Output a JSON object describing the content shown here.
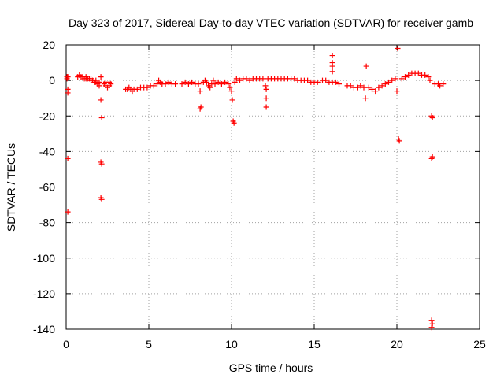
{
  "chart_data": {
    "type": "scatter",
    "title": "Day 323 of 2017, Sidereal Day-to-day VTEC variation (SDTVAR) for receiver gamb",
    "xlabel": "GPS time / hours",
    "ylabel": "SDTVAR / TECUs",
    "xlim": [
      0,
      25
    ],
    "ylim": [
      -140,
      20
    ],
    "xticks": [
      0,
      5,
      10,
      15,
      20,
      25
    ],
    "yticks": [
      20,
      0,
      -20,
      -40,
      -60,
      -80,
      -100,
      -120,
      -140
    ],
    "grid": true,
    "marker": "plus",
    "color": "#ff0000",
    "series": [
      {
        "name": "SDTVAR",
        "points": [
          [
            0.05,
            2
          ],
          [
            0.05,
            1
          ],
          [
            0.1,
            2
          ],
          [
            0.1,
            -5
          ],
          [
            0.1,
            -7
          ],
          [
            0.1,
            -44
          ],
          [
            0.1,
            -74
          ],
          [
            0.7,
            2
          ],
          [
            0.8,
            3
          ],
          [
            0.9,
            2
          ],
          [
            1.0,
            2
          ],
          [
            1.1,
            1
          ],
          [
            1.2,
            1
          ],
          [
            1.3,
            1
          ],
          [
            1.4,
            1
          ],
          [
            1.5,
            0
          ],
          [
            1.6,
            0
          ],
          [
            1.7,
            -1
          ],
          [
            1.8,
            -1
          ],
          [
            1.9,
            -2
          ],
          [
            2.0,
            -3
          ],
          [
            1.2,
            2
          ],
          [
            1.5,
            1
          ],
          [
            1.8,
            0
          ],
          [
            2.0,
            -1
          ],
          [
            2.1,
            -11
          ],
          [
            2.15,
            -21
          ],
          [
            2.1,
            -46
          ],
          [
            2.15,
            -47
          ],
          [
            2.1,
            -66
          ],
          [
            2.15,
            -67
          ],
          [
            2.1,
            2
          ],
          [
            2.3,
            -2
          ],
          [
            2.4,
            -3
          ],
          [
            2.5,
            -4
          ],
          [
            2.6,
            -3
          ],
          [
            2.7,
            -2
          ],
          [
            2.4,
            -1
          ],
          [
            2.6,
            -1
          ],
          [
            3.6,
            -5
          ],
          [
            3.7,
            -5
          ],
          [
            3.8,
            -4
          ],
          [
            3.9,
            -5
          ],
          [
            4.0,
            -6
          ],
          [
            4.1,
            -5
          ],
          [
            4.3,
            -5
          ],
          [
            4.5,
            -4
          ],
          [
            4.7,
            -4
          ],
          [
            4.9,
            -4
          ],
          [
            5.1,
            -3
          ],
          [
            5.3,
            -3
          ],
          [
            5.5,
            -2
          ],
          [
            5.6,
            0
          ],
          [
            5.7,
            -1
          ],
          [
            5.8,
            -2
          ],
          [
            6.0,
            -2
          ],
          [
            6.2,
            -1
          ],
          [
            6.4,
            -2
          ],
          [
            6.6,
            -2
          ],
          [
            7.0,
            -2
          ],
          [
            7.2,
            -1
          ],
          [
            7.4,
            -2
          ],
          [
            7.6,
            -1
          ],
          [
            7.8,
            -2
          ],
          [
            8.0,
            -2
          ],
          [
            8.1,
            -6
          ],
          [
            8.1,
            -16
          ],
          [
            8.15,
            -15
          ],
          [
            8.3,
            -1
          ],
          [
            8.4,
            0
          ],
          [
            8.5,
            -1
          ],
          [
            8.6,
            -3
          ],
          [
            8.7,
            -4
          ],
          [
            8.8,
            -2
          ],
          [
            8.9,
            0
          ],
          [
            9.0,
            -2
          ],
          [
            9.2,
            -1
          ],
          [
            9.4,
            -2
          ],
          [
            9.6,
            -1
          ],
          [
            9.8,
            -2
          ],
          [
            9.9,
            -4
          ],
          [
            10.0,
            -6
          ],
          [
            10.05,
            -11
          ],
          [
            10.1,
            -23
          ],
          [
            10.15,
            -24
          ],
          [
            10.2,
            -1
          ],
          [
            10.3,
            1
          ],
          [
            10.5,
            0
          ],
          [
            10.7,
            1
          ],
          [
            10.9,
            1
          ],
          [
            11.1,
            0
          ],
          [
            11.3,
            1
          ],
          [
            11.5,
            1
          ],
          [
            11.7,
            1
          ],
          [
            11.9,
            1
          ],
          [
            12.05,
            -3
          ],
          [
            12.1,
            -5
          ],
          [
            12.1,
            -10
          ],
          [
            12.1,
            -15
          ],
          [
            12.2,
            1
          ],
          [
            12.4,
            1
          ],
          [
            12.6,
            1
          ],
          [
            12.8,
            1
          ],
          [
            13.0,
            1
          ],
          [
            13.2,
            1
          ],
          [
            13.4,
            1
          ],
          [
            13.6,
            1
          ],
          [
            13.8,
            1
          ],
          [
            14.0,
            0
          ],
          [
            14.2,
            0
          ],
          [
            14.4,
            0
          ],
          [
            14.6,
            0
          ],
          [
            14.8,
            -1
          ],
          [
            15.0,
            -1
          ],
          [
            15.2,
            -1
          ],
          [
            15.5,
            0
          ],
          [
            15.7,
            0
          ],
          [
            15.9,
            -1
          ],
          [
            16.1,
            -1
          ],
          [
            16.1,
            14
          ],
          [
            16.1,
            10
          ],
          [
            16.1,
            8
          ],
          [
            16.1,
            5
          ],
          [
            16.3,
            -1
          ],
          [
            16.5,
            -2
          ],
          [
            17.0,
            -3
          ],
          [
            17.2,
            -3
          ],
          [
            17.4,
            -4
          ],
          [
            17.6,
            -4
          ],
          [
            17.8,
            -3
          ],
          [
            18.0,
            -4
          ],
          [
            18.1,
            -10
          ],
          [
            18.15,
            8
          ],
          [
            18.3,
            -4
          ],
          [
            18.5,
            -5
          ],
          [
            18.7,
            -6
          ],
          [
            18.9,
            -4
          ],
          [
            19.1,
            -3
          ],
          [
            19.3,
            -2
          ],
          [
            19.5,
            -1
          ],
          [
            19.7,
            0
          ],
          [
            19.9,
            1
          ],
          [
            20.0,
            -6
          ],
          [
            20.05,
            18
          ],
          [
            20.1,
            -33
          ],
          [
            20.15,
            -34
          ],
          [
            20.3,
            1
          ],
          [
            20.5,
            2
          ],
          [
            20.7,
            3
          ],
          [
            20.9,
            4
          ],
          [
            21.1,
            4
          ],
          [
            21.3,
            4
          ],
          [
            21.5,
            3
          ],
          [
            21.7,
            3
          ],
          [
            21.9,
            2
          ],
          [
            22.0,
            0
          ],
          [
            22.1,
            -20
          ],
          [
            22.15,
            -21
          ],
          [
            22.1,
            -44
          ],
          [
            22.15,
            -43
          ],
          [
            22.1,
            -135
          ],
          [
            22.15,
            -137
          ],
          [
            22.1,
            -139
          ],
          [
            22.3,
            -2
          ],
          [
            22.5,
            -2
          ],
          [
            22.8,
            -2
          ],
          [
            22.6,
            -3
          ]
        ]
      }
    ]
  }
}
